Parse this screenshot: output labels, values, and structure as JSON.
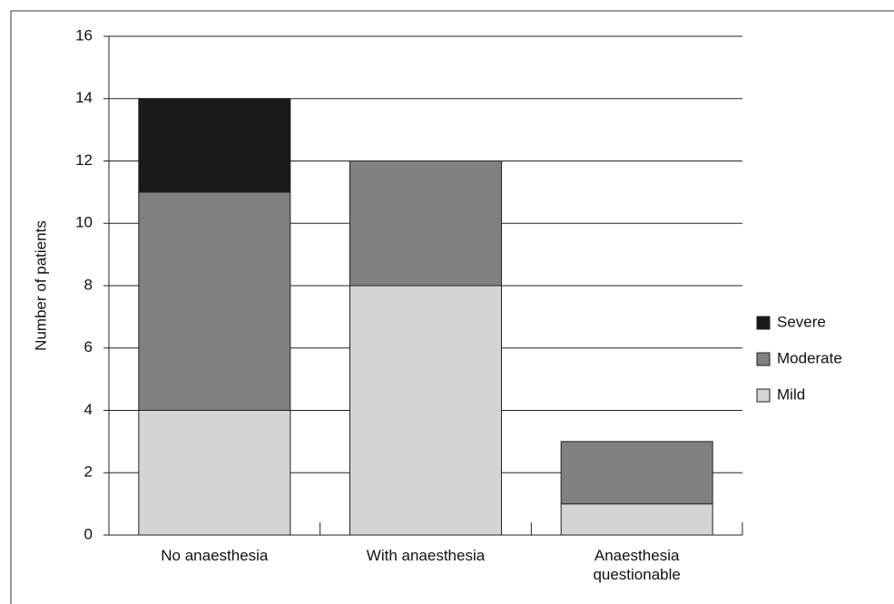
{
  "chart_data": {
    "type": "stacked_bar",
    "categories": [
      "No anaesthesia",
      "With anaesthesia",
      "Anaesthesia questionable"
    ],
    "series": [
      {
        "name": "Mild",
        "color": "#d4d4d6",
        "values": [
          4,
          8,
          1
        ]
      },
      {
        "name": "Moderate",
        "color": "#808084",
        "values": [
          7,
          4,
          2
        ]
      },
      {
        "name": "Severe",
        "color": "#1a1a1a",
        "values": [
          3,
          0,
          0
        ]
      }
    ],
    "y_label": "Number of patients",
    "ylim": [
      0,
      16
    ],
    "yticks": [
      0,
      2,
      4,
      6,
      8,
      10,
      12,
      14,
      16
    ],
    "grid": true,
    "legend": "right"
  }
}
